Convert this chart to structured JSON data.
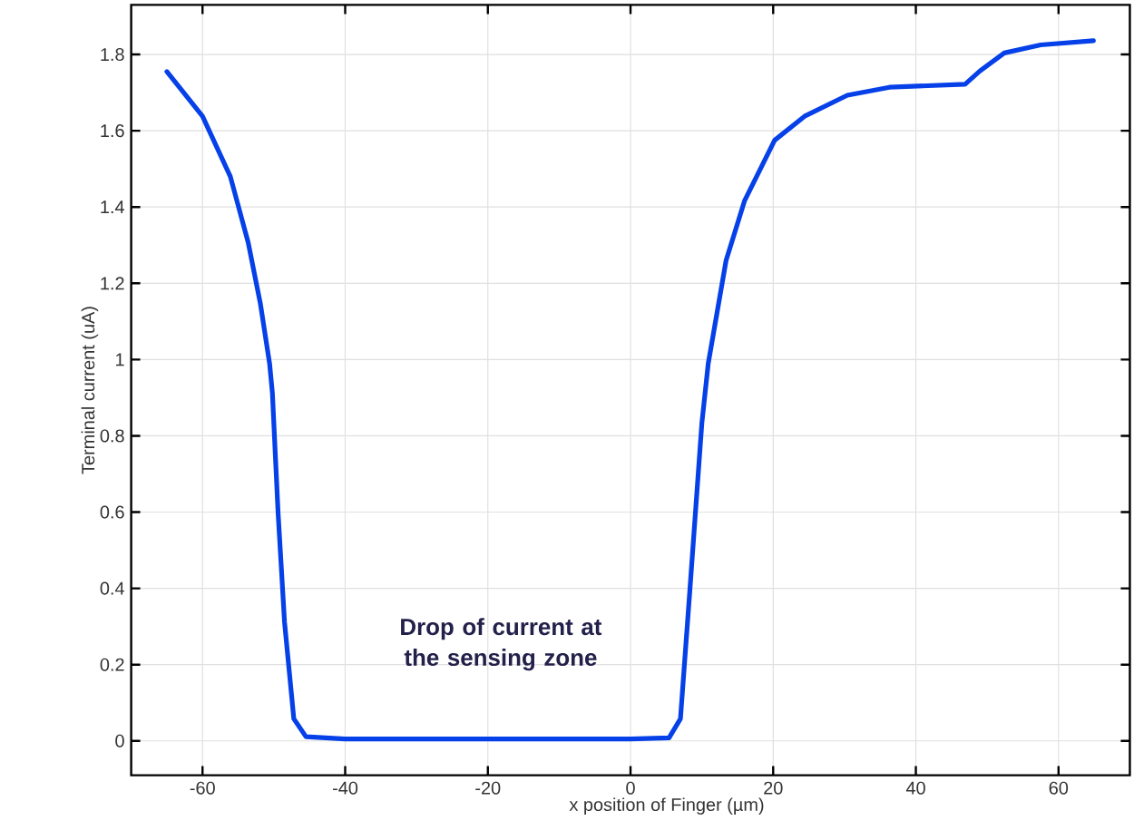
{
  "chart_data": {
    "type": "line",
    "xlabel": "x position of Finger (µm)",
    "ylabel": "Terminal current (uA)",
    "annotations": [
      "Drop of current at the sensing zone"
    ],
    "xlim": [
      -70,
      70
    ],
    "ylim": [
      -0.09,
      1.93
    ],
    "xticks": [
      -60,
      -40,
      -20,
      0,
      20,
      40,
      60
    ],
    "yticks": [
      0,
      0.2,
      0.4,
      0.6,
      0.8,
      1,
      1.2,
      1.4,
      1.6,
      1.8
    ],
    "grid": true,
    "marker": "none",
    "line_style": "solid",
    "series": [
      {
        "color": "#0540e8",
        "x": [
          -65,
          -60,
          -56.1,
          -53.6,
          -51.9,
          -50.6,
          -50.2,
          -49.4,
          -48.5,
          -47.2,
          -45.5,
          -40,
          -30,
          -20,
          -10,
          0,
          5.4,
          7.0,
          8.3,
          10.0,
          10.9,
          13.4,
          16.0,
          20.2,
          24.4,
          30.4,
          36.3,
          46.9,
          49.0,
          52.4,
          57.5,
          64.9
        ],
        "values": [
          1.755,
          1.638,
          1.48,
          1.307,
          1.148,
          0.99,
          0.911,
          0.596,
          0.311,
          0.058,
          0.011,
          0.005,
          0.005,
          0.005,
          0.005,
          0.005,
          0.008,
          0.058,
          0.39,
          0.833,
          0.99,
          1.26,
          1.417,
          1.575,
          1.638,
          1.693,
          1.714,
          1.722,
          1.757,
          1.804,
          1.825,
          1.836
        ]
      }
    ]
  }
}
